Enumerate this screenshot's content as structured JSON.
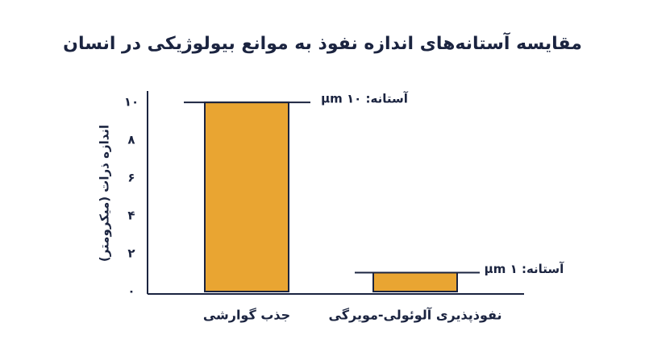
{
  "chart_data": {
    "type": "bar",
    "title": "مقایسه آستانه‌های اندازه نفوذ به موانع بیولوژیکی در انسان",
    "y_label": "اندازه ذرات (میکرومتر)",
    "categories": [
      "جذب گوارشی",
      "نفوذپذیری آلوئولی-مویرگی"
    ],
    "values": [
      10,
      1
    ],
    "color": "#e9a532",
    "ylim": [
      0,
      10.6
    ],
    "yticks": [
      {
        "value": 0,
        "label": "۰"
      },
      {
        "value": 2,
        "label": "۲"
      },
      {
        "value": 4,
        "label": "۴"
      },
      {
        "value": 6,
        "label": "۶"
      },
      {
        "value": 8,
        "label": "۸"
      },
      {
        "value": 10,
        "label": "۱۰"
      }
    ],
    "thresholds": [
      {
        "value": 10,
        "label": "آستانه: ۱۰ µm"
      },
      {
        "value": 1,
        "label": "آستانه: ۱ µm"
      }
    ],
    "grid": false
  }
}
